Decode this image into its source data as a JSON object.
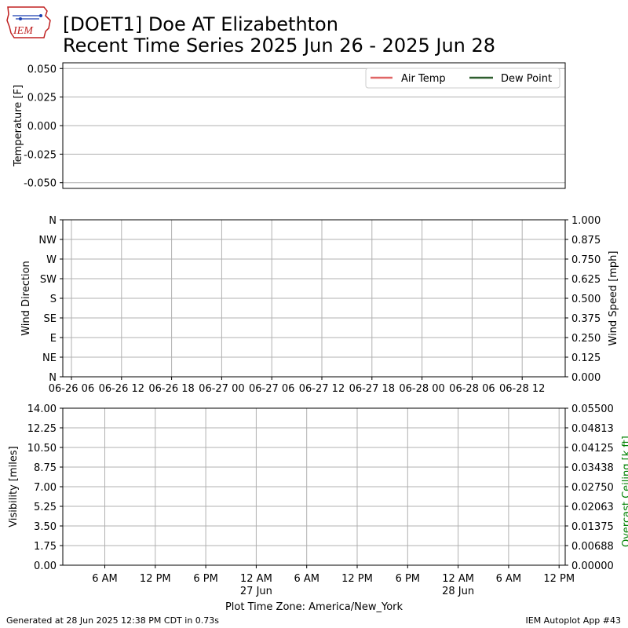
{
  "header": {
    "title_line1": "[DOET1] Doe  AT Elizabethton",
    "title_line2": "Recent Time Series 2025 Jun 26 - 2025 Jun 28",
    "logo_text": "IEM"
  },
  "footer": {
    "generated": "Generated at 28 Jun 2025 12:38 PM CDT in 0.73s",
    "app": "IEM Autoplot App #43"
  },
  "colors": {
    "air_temp": "#e06666",
    "dew_point": "#2e5e2e",
    "ceiling_label": "#008000",
    "grid": "#b0b0b0"
  },
  "chart_data": [
    {
      "type": "line",
      "ylabel": "Temperature [F]",
      "ylim": [
        -0.055,
        0.055
      ],
      "yticks": [
        "0.050",
        "0.025",
        "0.000",
        "-0.025",
        "-0.050"
      ],
      "ytick_values": [
        0.05,
        0.025,
        0.0,
        -0.025,
        -0.05
      ],
      "legend_placement": "top-right",
      "grid": true,
      "series": [
        {
          "name": "Air Temp",
          "values": []
        },
        {
          "name": "Dew Point",
          "values": []
        }
      ]
    },
    {
      "type": "scatter",
      "ylabel": "Wind Direction",
      "y2label": "Wind Speed [mph]",
      "yticks": [
        "N",
        "NE",
        "E",
        "SE",
        "S",
        "SW",
        "W",
        "NW",
        "N"
      ],
      "y2lim": [
        0,
        1
      ],
      "y2ticks": [
        "0.000",
        "0.125",
        "0.250",
        "0.375",
        "0.500",
        "0.625",
        "0.750",
        "0.875",
        "1.000"
      ],
      "xticks": [
        "06-26 06",
        "06-26 12",
        "06-26 18",
        "06-27 00",
        "06-27 06",
        "06-27 12",
        "06-27 18",
        "06-28 00",
        "06-28 06",
        "06-28 12"
      ],
      "grid": true,
      "series": []
    },
    {
      "type": "line",
      "ylabel": "Visibility [miles]",
      "y2label": "Overcast Ceiling [k ft]",
      "ylim": [
        0,
        14
      ],
      "yticks": [
        "0.00",
        "1.75",
        "3.50",
        "5.25",
        "7.00",
        "8.75",
        "10.50",
        "12.25",
        "14.00"
      ],
      "y2lim": [
        0,
        0.055
      ],
      "y2ticks": [
        "0.00000",
        "0.00688",
        "0.01375",
        "0.02063",
        "0.02750",
        "0.03438",
        "0.04125",
        "0.04813",
        "0.05500"
      ],
      "xticks": [
        "6 AM",
        "12 PM",
        "6 PM",
        "12 AM",
        "6 AM",
        "12 PM",
        "6 PM",
        "12 AM",
        "6 AM",
        "12 PM"
      ],
      "xticks_sub": [
        "",
        "",
        "",
        "27 Jun",
        "",
        "",
        "",
        "28 Jun",
        "",
        ""
      ],
      "xlabel": "Plot Time Zone: America/New_York",
      "grid": true,
      "series": []
    }
  ]
}
